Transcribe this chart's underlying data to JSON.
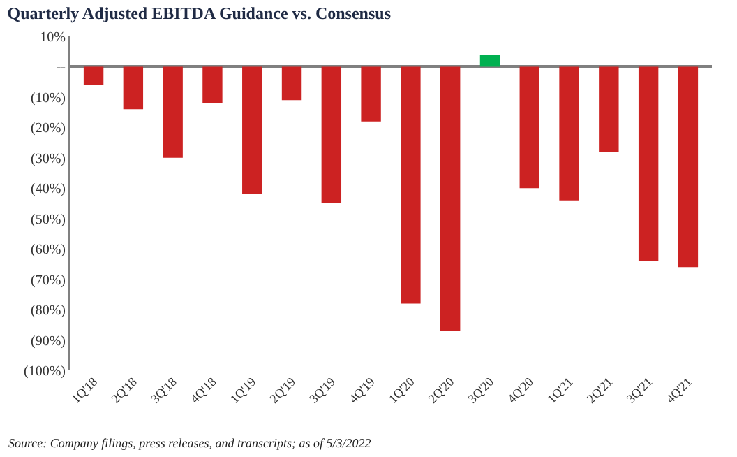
{
  "chart_data": {
    "type": "bar",
    "title": "Quarterly Adjusted EBITDA Guidance vs. Consensus",
    "categories": [
      "1Q'18",
      "2Q'18",
      "3Q'18",
      "4Q'18",
      "1Q'19",
      "2Q'19",
      "3Q'19",
      "4Q'19",
      "1Q'20",
      "2Q'20",
      "3Q'20",
      "4Q'20",
      "1Q'21",
      "2Q'21",
      "3Q'21",
      "4Q'21"
    ],
    "values": [
      -6,
      -14,
      -30,
      -12,
      -42,
      -11,
      -45,
      -18,
      -78,
      -87,
      4,
      -40,
      -44,
      -28,
      -64,
      -66
    ],
    "colors": [
      "#cc2222",
      "#cc2222",
      "#cc2222",
      "#cc2222",
      "#cc2222",
      "#cc2222",
      "#cc2222",
      "#cc2222",
      "#cc2222",
      "#cc2222",
      "#00b050",
      "#cc2222",
      "#cc2222",
      "#cc2222",
      "#cc2222",
      "#cc2222"
    ],
    "ylim": [
      -100,
      10
    ],
    "yticks": [
      {
        "value": 10,
        "label": "10%"
      },
      {
        "value": 0,
        "label": "--"
      },
      {
        "value": -10,
        "label": "(10%)"
      },
      {
        "value": -20,
        "label": "(20%)"
      },
      {
        "value": -30,
        "label": "(30%)"
      },
      {
        "value": -40,
        "label": "(40%)"
      },
      {
        "value": -50,
        "label": "(50%)"
      },
      {
        "value": -60,
        "label": "(60%)"
      },
      {
        "value": -70,
        "label": "(70%)"
      },
      {
        "value": -80,
        "label": "(80%)"
      },
      {
        "value": -90,
        "label": "(90%)"
      },
      {
        "value": -100,
        "label": "(100%)"
      }
    ],
    "annotations": [
      "Source: Company filings, press releases, and transcripts; as of 5/3/2022"
    ],
    "legend": false
  }
}
